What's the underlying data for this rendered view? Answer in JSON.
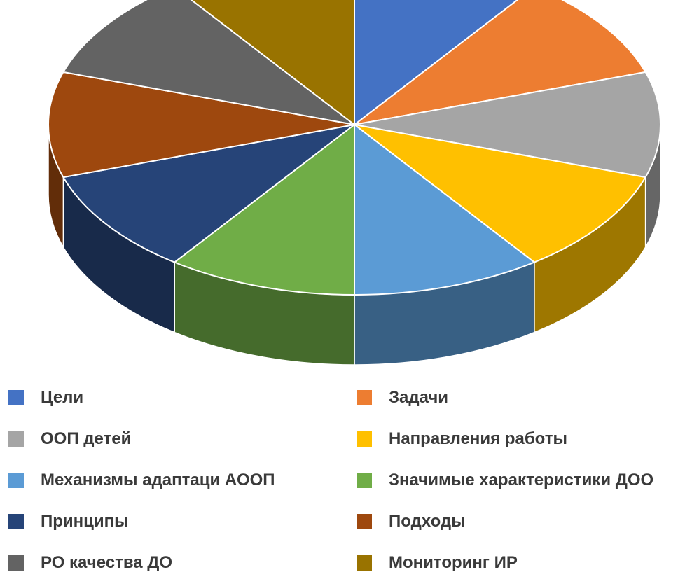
{
  "chart_data": {
    "type": "pie",
    "style": "3d",
    "categories": [
      "Цели",
      "Задачи",
      "ООП детей",
      "Направления работы",
      "Механизмы адаптаци АООП",
      "Значимые характеристики ДОО",
      "Принципы",
      "Подходы",
      "РО качества ДО",
      "Мониторинг ИР"
    ],
    "values": [
      10,
      10,
      10,
      10,
      10,
      10,
      10,
      10,
      10,
      10
    ],
    "colors": [
      "#4472C4",
      "#ED7D31",
      "#A5A5A5",
      "#FFC000",
      "#5B9BD5",
      "#70AD47",
      "#264478",
      "#9E480E",
      "#636363",
      "#997300"
    ],
    "slices": [
      {
        "label": "Цели",
        "value": 10,
        "color": "#4472C4"
      },
      {
        "label": "Задачи",
        "value": 10,
        "color": "#ED7D31"
      },
      {
        "label": "ООП детей",
        "value": 10,
        "color": "#A5A5A5"
      },
      {
        "label": "Направления работы",
        "value": 10,
        "color": "#FFC000"
      },
      {
        "label": "Механизмы адаптаци АООП",
        "value": 10,
        "color": "#5B9BD5"
      },
      {
        "label": "Значимые характеристики ДОО",
        "value": 10,
        "color": "#70AD47"
      },
      {
        "label": "Принципы",
        "value": 10,
        "color": "#264478"
      },
      {
        "label": "Подходы",
        "value": 10,
        "color": "#9E480E"
      },
      {
        "label": "РО качества ДО",
        "value": 10,
        "color": "#636363"
      },
      {
        "label": "Мониторинг ИР",
        "value": 10,
        "color": "#997300"
      }
    ],
    "title": "",
    "legend": "bottom",
    "legend_columns": 2
  }
}
